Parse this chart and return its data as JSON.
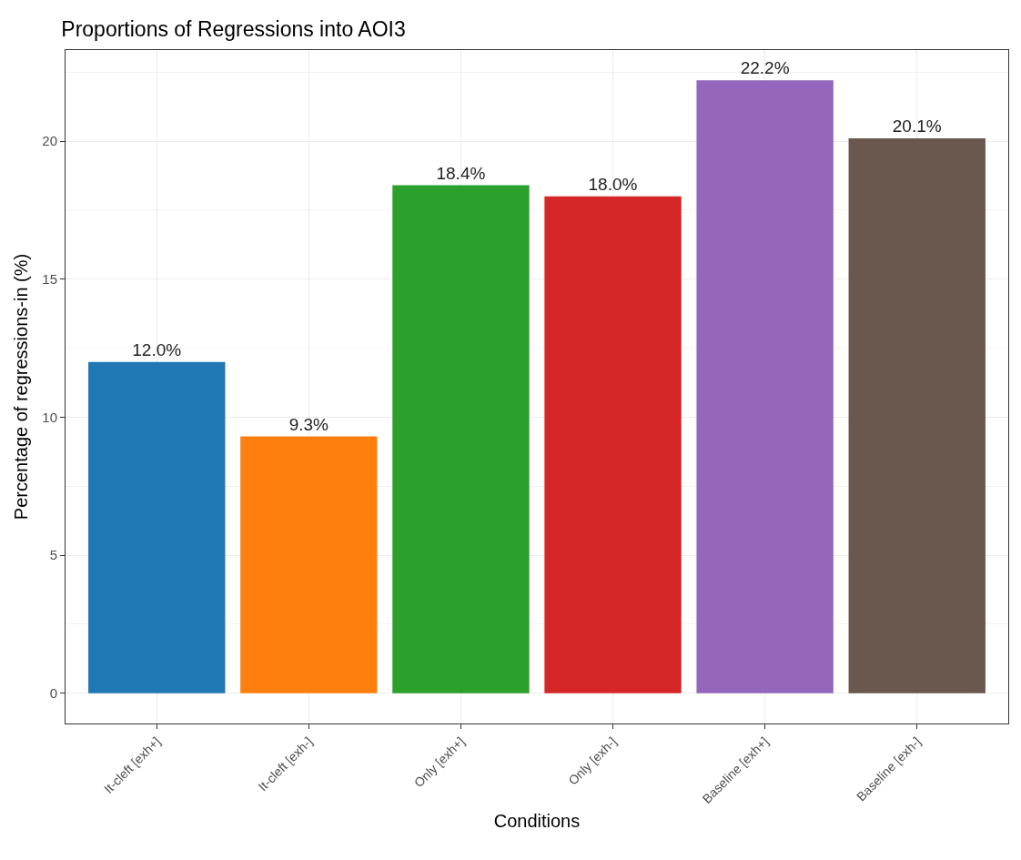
{
  "chart_data": {
    "type": "bar",
    "title": "Proportions of Regressions into AOI3",
    "xlabel": "Conditions",
    "ylabel": "Percentage of regressions-in (%)",
    "categories": [
      "It-cleft [exh+]",
      "It-cleft [exh-]",
      "Only [exh+]",
      "Only [exh-]",
      "Baseline [exh+]",
      "Baseline [exh-]"
    ],
    "values": [
      12.0,
      9.3,
      18.4,
      18.0,
      22.2,
      20.1
    ],
    "value_labels": [
      "12.0%",
      "9.3%",
      "18.4%",
      "18.0%",
      "22.2%",
      "20.1%"
    ],
    "colors": [
      "#1f77b4",
      "#ff7f0e",
      "#2ca02c",
      "#d62728",
      "#9467bd",
      "#6a574d"
    ],
    "ylim": [
      -1.1,
      23.3
    ],
    "yticks": [
      0,
      5,
      10,
      15,
      20
    ],
    "grid": true
  }
}
